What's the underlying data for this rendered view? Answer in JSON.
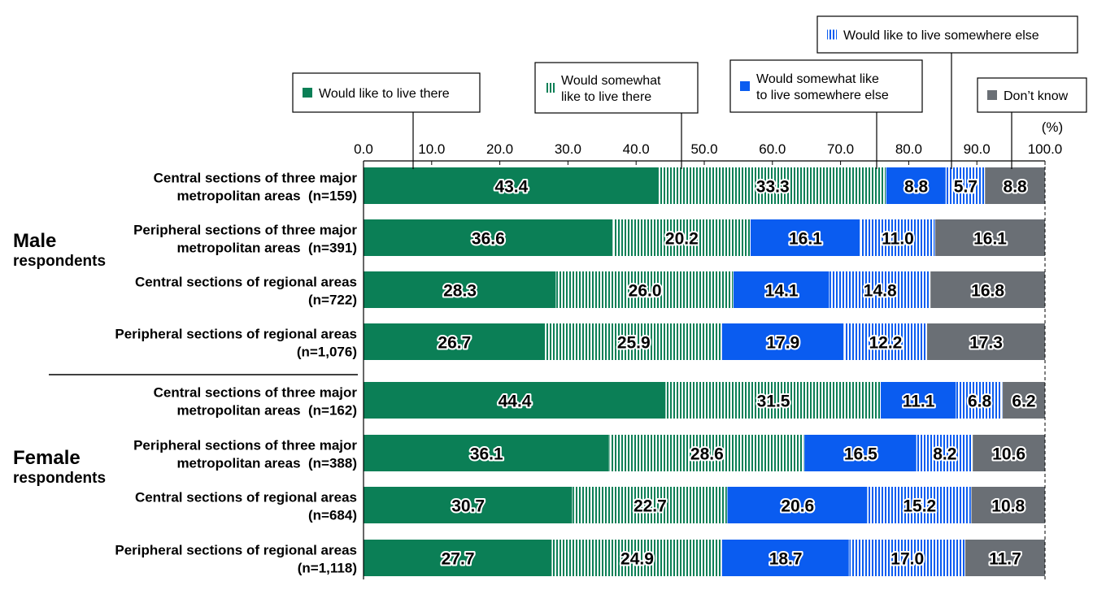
{
  "chart_data": {
    "type": "bar",
    "orientation": "horizontal",
    "stacked": true,
    "unit_label": "(%)",
    "xlim": [
      0,
      100
    ],
    "x_ticks": [
      "0.0",
      "10.0",
      "20.0",
      "30.0",
      "40.0",
      "50.0",
      "60.0",
      "70.0",
      "80.0",
      "90.0",
      "100.0"
    ],
    "groups": [
      {
        "label": [
          "Male",
          "respondents"
        ],
        "rows": [
          0,
          1,
          2,
          3
        ]
      },
      {
        "label": [
          "Female",
          "respondents"
        ],
        "rows": [
          4,
          5,
          6,
          7
        ]
      }
    ],
    "categories": [
      [
        "Central sections of three major",
        "metropolitan areas  (n=159)"
      ],
      [
        "Peripheral sections of three major",
        "metropolitan areas  (n=391)"
      ],
      [
        "Central sections of regional areas",
        "(n=722)"
      ],
      [
        "Peripheral sections of regional areas",
        "(n=1,076)"
      ],
      [
        "Central sections of three major",
        "metropolitan areas  (n=162)"
      ],
      [
        "Peripheral sections of three major",
        "metropolitan areas  (n=388)"
      ],
      [
        "Central sections of regional areas",
        "(n=684)"
      ],
      [
        "Peripheral sections of regional areas",
        "(n=1,118)"
      ]
    ],
    "series": [
      {
        "name": [
          "Would like to live there"
        ],
        "color": "#0b7f56",
        "pattern": "solid",
        "values": [
          43.4,
          36.6,
          28.3,
          26.7,
          44.4,
          36.1,
          30.7,
          27.7
        ]
      },
      {
        "name": [
          "Would somewhat",
          "like to live there"
        ],
        "color": "#0b7f56",
        "pattern": "stripes",
        "values": [
          33.3,
          20.2,
          26.0,
          25.9,
          31.5,
          28.6,
          22.7,
          24.9
        ]
      },
      {
        "name": [
          "Would somewhat like",
          "to live somewhere else"
        ],
        "color": "#0a5cf0",
        "pattern": "solid",
        "values": [
          8.8,
          16.1,
          14.1,
          17.9,
          11.1,
          16.5,
          20.6,
          18.7
        ]
      },
      {
        "name": [
          "Would like to live somewhere else"
        ],
        "color": "#0a5cf0",
        "pattern": "stripes",
        "values": [
          5.7,
          11.0,
          14.8,
          12.2,
          6.8,
          8.2,
          15.2,
          17.0
        ]
      },
      {
        "name": [
          "Don’t know"
        ],
        "color": "#6a6f75",
        "pattern": "solid",
        "values": [
          8.8,
          16.1,
          16.8,
          17.3,
          6.2,
          10.6,
          10.8,
          11.7
        ]
      }
    ],
    "value_labels": [
      [
        "43.4",
        "33.3",
        "8.8",
        "5.7",
        "8.8"
      ],
      [
        "36.6",
        "20.2",
        "16.1",
        "11.0",
        "16.1"
      ],
      [
        "28.3",
        "26.0",
        "14.1",
        "14.8",
        "16.8"
      ],
      [
        "26.7",
        "25.9",
        "17.9",
        "12.2",
        "17.3"
      ],
      [
        "44.4",
        "31.5",
        "11.1",
        "6.8",
        "6.2"
      ],
      [
        "36.1",
        "28.6",
        "16.5",
        "8.2",
        "10.6"
      ],
      [
        "30.7",
        "22.7",
        "20.6",
        "15.2",
        "10.8"
      ],
      [
        "27.7",
        "24.9",
        "18.7",
        "17.0",
        "11.7"
      ]
    ]
  }
}
